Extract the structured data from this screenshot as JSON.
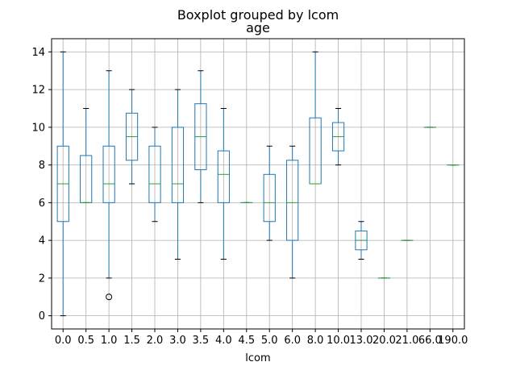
{
  "chart_data": {
    "type": "boxplot",
    "title": "Boxplot grouped by lcom",
    "subtitle": "age",
    "xlabel": "lcom",
    "ylabel": "",
    "ylim": [
      -0.7,
      14.7
    ],
    "yticks": [
      0,
      2,
      4,
      6,
      8,
      10,
      12,
      14
    ],
    "grid": true,
    "categories": [
      "0.0",
      "0.5",
      "1.0",
      "1.5",
      "2.0",
      "3.0",
      "3.5",
      "4.0",
      "4.5",
      "5.0",
      "6.0",
      "8.0",
      "10.0",
      "13.0",
      "20.0",
      "21.0",
      "66.0",
      "190.0"
    ],
    "boxes": [
      {
        "category": "0.0",
        "min": 0,
        "q1": 5,
        "median": 7,
        "q3": 9,
        "max": 14,
        "outliers": []
      },
      {
        "category": "0.5",
        "min": 6,
        "q1": 6,
        "median": 6,
        "q3": 8.5,
        "max": 11,
        "outliers": []
      },
      {
        "category": "1.0",
        "min": 2,
        "q1": 6,
        "median": 7,
        "q3": 9,
        "max": 13,
        "outliers": [
          1
        ]
      },
      {
        "category": "1.5",
        "min": 7,
        "q1": 8.25,
        "median": 9.5,
        "q3": 10.75,
        "max": 12,
        "outliers": []
      },
      {
        "category": "2.0",
        "min": 5,
        "q1": 6,
        "median": 7,
        "q3": 9,
        "max": 10,
        "outliers": []
      },
      {
        "category": "3.0",
        "min": 3,
        "q1": 6,
        "median": 7,
        "q3": 10,
        "max": 12,
        "outliers": []
      },
      {
        "category": "3.5",
        "min": 6,
        "q1": 7.75,
        "median": 9.5,
        "q3": 11.25,
        "max": 13,
        "outliers": []
      },
      {
        "category": "4.0",
        "min": 3,
        "q1": 6,
        "median": 7.5,
        "q3": 8.75,
        "max": 11,
        "outliers": []
      },
      {
        "category": "4.5",
        "min": 6,
        "q1": 6,
        "median": 6,
        "q3": 6,
        "max": 6,
        "outliers": []
      },
      {
        "category": "5.0",
        "min": 4,
        "q1": 5,
        "median": 6,
        "q3": 7.5,
        "max": 9,
        "outliers": []
      },
      {
        "category": "6.0",
        "min": 2,
        "q1": 4,
        "median": 6,
        "q3": 8.25,
        "max": 9,
        "outliers": []
      },
      {
        "category": "8.0",
        "min": 7,
        "q1": 7,
        "median": 7,
        "q3": 10.5,
        "max": 14,
        "outliers": []
      },
      {
        "category": "10.0",
        "min": 8,
        "q1": 8.75,
        "median": 9.5,
        "q3": 10.25,
        "max": 11,
        "outliers": []
      },
      {
        "category": "13.0",
        "min": 3,
        "q1": 3.5,
        "median": 4,
        "q3": 4.5,
        "max": 5,
        "outliers": []
      },
      {
        "category": "20.0",
        "min": 2,
        "q1": 2,
        "median": 2,
        "q3": 2,
        "max": 2,
        "outliers": []
      },
      {
        "category": "21.0",
        "min": 4,
        "q1": 4,
        "median": 4,
        "q3": 4,
        "max": 4,
        "outliers": []
      },
      {
        "category": "66.0",
        "min": 10,
        "q1": 10,
        "median": 10,
        "q3": 10,
        "max": 10,
        "outliers": []
      },
      {
        "category": "190.0",
        "min": 8,
        "q1": 8,
        "median": 8,
        "q3": 8,
        "max": 8,
        "outliers": []
      }
    ],
    "colors": {
      "box": "#1f77b4",
      "median": "#2ca02c",
      "whisker": "#1f77b4",
      "cap": "#000000",
      "grid": "#b0b0b0",
      "outlier": "#000000"
    }
  }
}
